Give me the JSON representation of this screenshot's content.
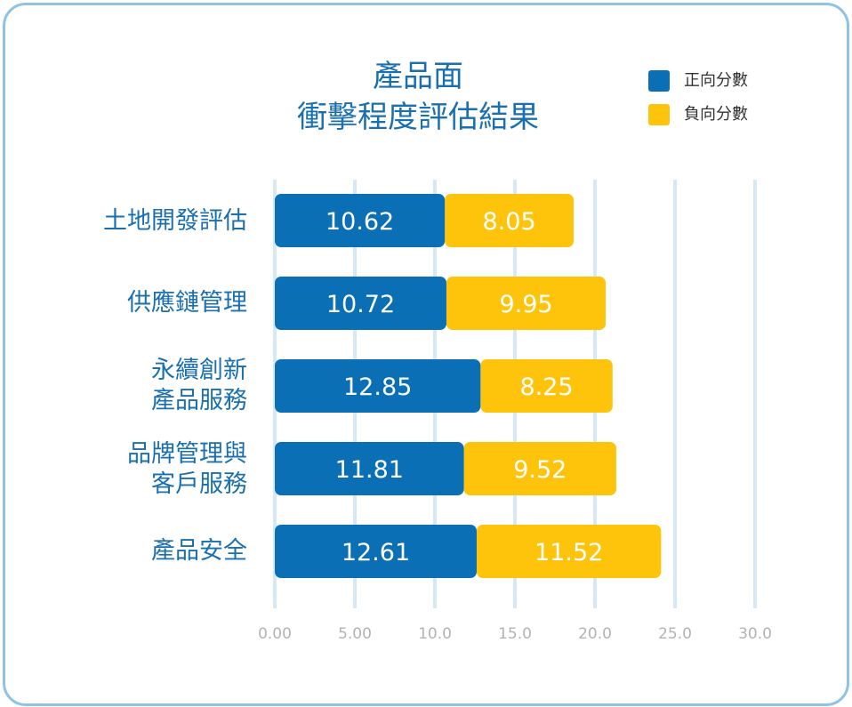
{
  "chart_data": {
    "type": "bar",
    "orientation": "horizontal",
    "stacked": true,
    "title_line1": "產品面",
    "title_line2": "衝擊程度評估結果",
    "categories": [
      "土地開發評估",
      "供應鏈管理",
      "永續創新\n產品服務",
      "品牌管理與\n客戶服務",
      "產品安全"
    ],
    "series": [
      {
        "name": "正向分數",
        "color": "#0b6fb6",
        "values": [
          10.62,
          10.72,
          12.85,
          11.81,
          12.61
        ],
        "labels": [
          "10.62",
          "10.72",
          "12.85",
          "11.81",
          "12.61"
        ]
      },
      {
        "name": "負向分數",
        "color": "#fec40c",
        "values": [
          8.05,
          9.95,
          8.25,
          9.52,
          11.52
        ],
        "labels": [
          "8.05",
          "9.95",
          "8.25",
          "9.52",
          "11.52"
        ]
      }
    ],
    "xlim": [
      0,
      30
    ],
    "xticks": [
      0,
      5,
      10,
      15,
      20,
      25,
      30
    ],
    "xtick_labels": [
      "0.00",
      "5.00",
      "10.0",
      "15.0",
      "20.0",
      "25.0",
      "30.0"
    ],
    "grid": true,
    "legend_position": "top-right"
  }
}
